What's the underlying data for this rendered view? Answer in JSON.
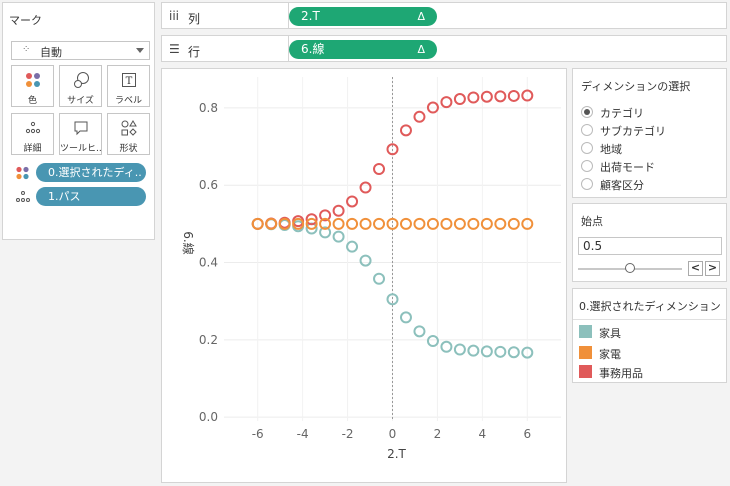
{
  "marks": {
    "title": "マーク",
    "mark_type": "自動",
    "buttons": [
      {
        "label": "色",
        "icon": "color-icon"
      },
      {
        "label": "サイズ",
        "icon": "size-icon"
      },
      {
        "label": "ラベル",
        "icon": "label-icon"
      },
      {
        "label": "詳細",
        "icon": "detail-icon"
      },
      {
        "label": "ツールヒ...",
        "icon": "tooltip-icon"
      },
      {
        "label": "形状",
        "icon": "shape-icon"
      }
    ],
    "pills": [
      {
        "label": "0.選択されたディ..",
        "icon": "color-icon"
      },
      {
        "label": "1.パス",
        "icon": "path-icon"
      }
    ]
  },
  "shelves": {
    "columns": {
      "label": "列",
      "icon": "columns-icon",
      "pill": "2.T",
      "pill_icon": "Δ"
    },
    "rows": {
      "label": "行",
      "icon": "rows-icon",
      "pill": "6.線",
      "pill_icon": "Δ"
    }
  },
  "dimension_selector": {
    "title": "ディメンションの選択",
    "options": [
      "カテゴリ",
      "サブカテゴリ",
      "地域",
      "出荷モード",
      "顧客区分"
    ],
    "selected": "カテゴリ"
  },
  "start_point": {
    "title": "始点",
    "value": "0.5",
    "slider_fraction": 0.5
  },
  "legend": {
    "title": "0.選択されたディメンション",
    "items": [
      {
        "label": "家具",
        "color": "#8cc0bc"
      },
      {
        "label": "家電",
        "color": "#f0903a"
      },
      {
        "label": "事務用品",
        "color": "#e05a5a"
      }
    ]
  },
  "chart_data": {
    "type": "scatter",
    "xlabel": "2.T",
    "ylabel": "6.線",
    "xlim": [
      -7.5,
      7.5
    ],
    "ylim": [
      -0.01,
      0.88
    ],
    "x_ticks": [
      "-6",
      "-4",
      "-2",
      "0",
      "2",
      "4",
      "6"
    ],
    "y_ticks": [
      "0.0",
      "0.2",
      "0.4",
      "0.6",
      "0.8"
    ],
    "grid": true,
    "x": [
      -6,
      -5.4,
      -4.8,
      -4.2,
      -3.6,
      -3,
      -2.4,
      -1.8,
      -1.2,
      -0.6,
      0,
      0.6,
      1.2,
      1.8,
      2.4,
      3,
      3.6,
      4.2,
      4.8,
      5.4,
      6
    ],
    "series": [
      {
        "name": "家具",
        "color": "#8cc0bc",
        "values": [
          0.5,
          0.499,
          0.497,
          0.494,
          0.488,
          0.478,
          0.467,
          0.441,
          0.405,
          0.358,
          0.305,
          0.258,
          0.222,
          0.197,
          0.182,
          0.175,
          0.172,
          0.17,
          0.169,
          0.168,
          0.167
        ]
      },
      {
        "name": "家電",
        "color": "#f0903a",
        "values": [
          0.5,
          0.5,
          0.5,
          0.5,
          0.5,
          0.5,
          0.5,
          0.5,
          0.5,
          0.5,
          0.5,
          0.5,
          0.5,
          0.5,
          0.5,
          0.5,
          0.5,
          0.5,
          0.5,
          0.5,
          0.5
        ]
      },
      {
        "name": "事務用品",
        "color": "#e05a5a",
        "values": [
          0.5,
          0.501,
          0.503,
          0.507,
          0.512,
          0.522,
          0.534,
          0.558,
          0.594,
          0.642,
          0.693,
          0.742,
          0.777,
          0.801,
          0.815,
          0.823,
          0.827,
          0.829,
          0.83,
          0.831,
          0.832
        ]
      }
    ]
  }
}
